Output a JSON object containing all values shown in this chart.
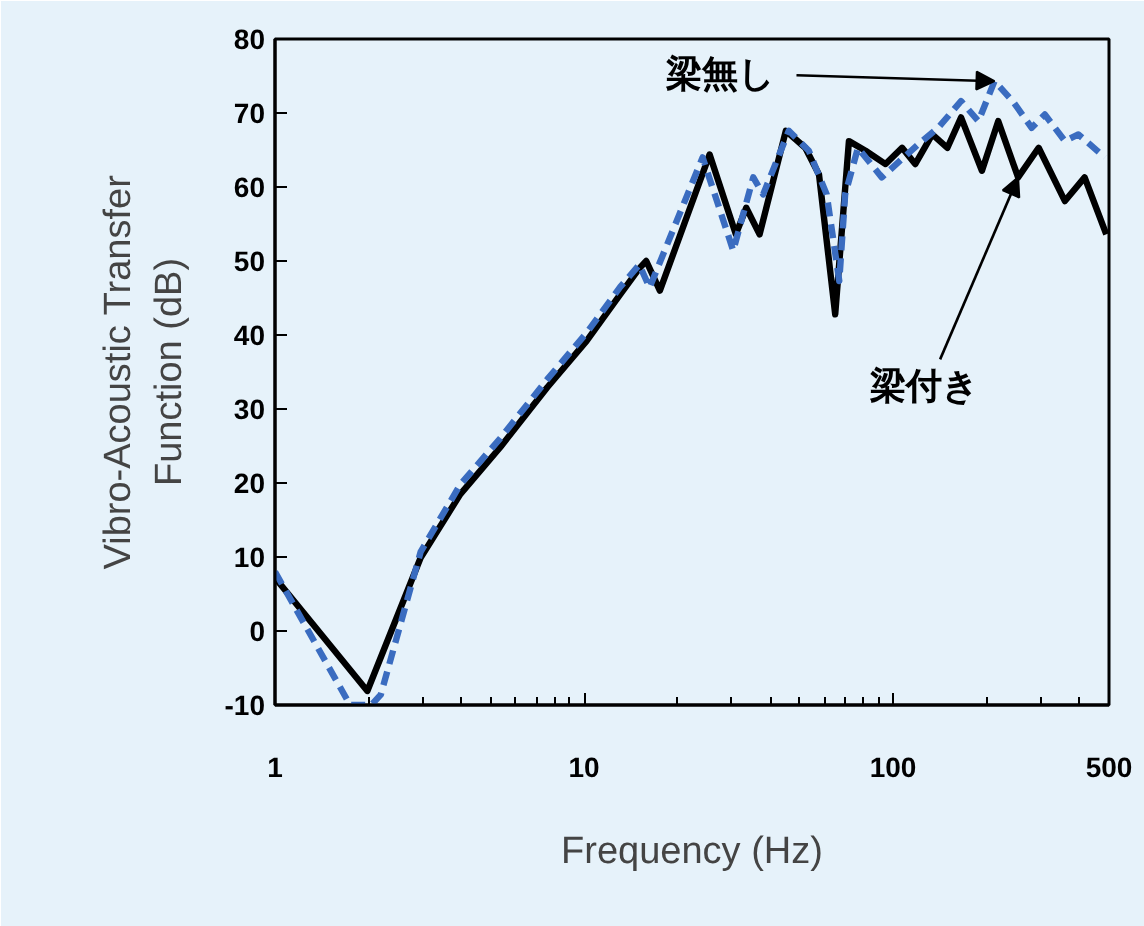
{
  "chart_data": {
    "type": "line",
    "xlabel": "Frequency (Hz)",
    "ylabel": "Vibro-Acoustic Transfer\nFunction (dB)",
    "log": "x",
    "xlim": [
      1,
      500
    ],
    "xticks": [
      1,
      10,
      100,
      500
    ],
    "ylim": [
      -10,
      80
    ],
    "yticks": [
      -10,
      0,
      10,
      20,
      30,
      40,
      50,
      60,
      70,
      80
    ],
    "grid": false,
    "marker": "none",
    "series": [
      {
        "color": "#000000",
        "line_style": "solid",
        "x": [
          1,
          1.99,
          2.96,
          3.98,
          5.35,
          7.6,
          10.2,
          13.1,
          15.1,
          15.9,
          17.6,
          25.5,
          31,
          33.5,
          37,
          45,
          52,
          57.6,
          65,
          72,
          81.5,
          94.6,
          107,
          118,
          134,
          150,
          166,
          194,
          219,
          254,
          296,
          360,
          417,
          490
        ],
        "values": [
          7.2,
          -8.1,
          9.9,
          18.5,
          24.8,
          32.9,
          39.2,
          45.5,
          49,
          50,
          46,
          64.4,
          53.6,
          57.2,
          53.6,
          67.6,
          65.3,
          61.7,
          42.8,
          66.2,
          64.9,
          63.1,
          65.3,
          63.1,
          67.1,
          65.3,
          69.4,
          62.2,
          68.9,
          61.3,
          65.3,
          58.1,
          61.3,
          53.6
        ]
      },
      {
        "color": "#3a6cc0",
        "line_style": "dashed",
        "x": [
          1,
          1.75,
          2.05,
          2.2,
          2.96,
          3.98,
          5.35,
          7.6,
          10.2,
          13.1,
          15.1,
          16.3,
          24.2,
          30.4,
          35.3,
          38,
          46,
          53.4,
          61,
          67,
          70,
          77,
          92,
          105,
          121,
          140,
          166,
          189,
          213,
          244,
          281,
          310,
          360,
          398,
          485
        ],
        "values": [
          8,
          -10,
          -10,
          -8.6,
          10.7,
          19.8,
          26,
          34,
          40.3,
          46.5,
          49.5,
          46.4,
          64,
          51.4,
          61.3,
          59,
          67.6,
          64.9,
          59,
          47.3,
          59,
          65.3,
          61.3,
          63.5,
          65.8,
          68,
          71.6,
          68.9,
          74.3,
          71.6,
          68,
          69.8,
          66.2,
          67.1,
          64
        ]
      }
    ],
    "annotations": [
      {
        "text": "梁無し",
        "x": 213,
        "y": 74.3
      },
      {
        "text": "梁付き",
        "x": 254,
        "y": 61.3
      }
    ]
  }
}
